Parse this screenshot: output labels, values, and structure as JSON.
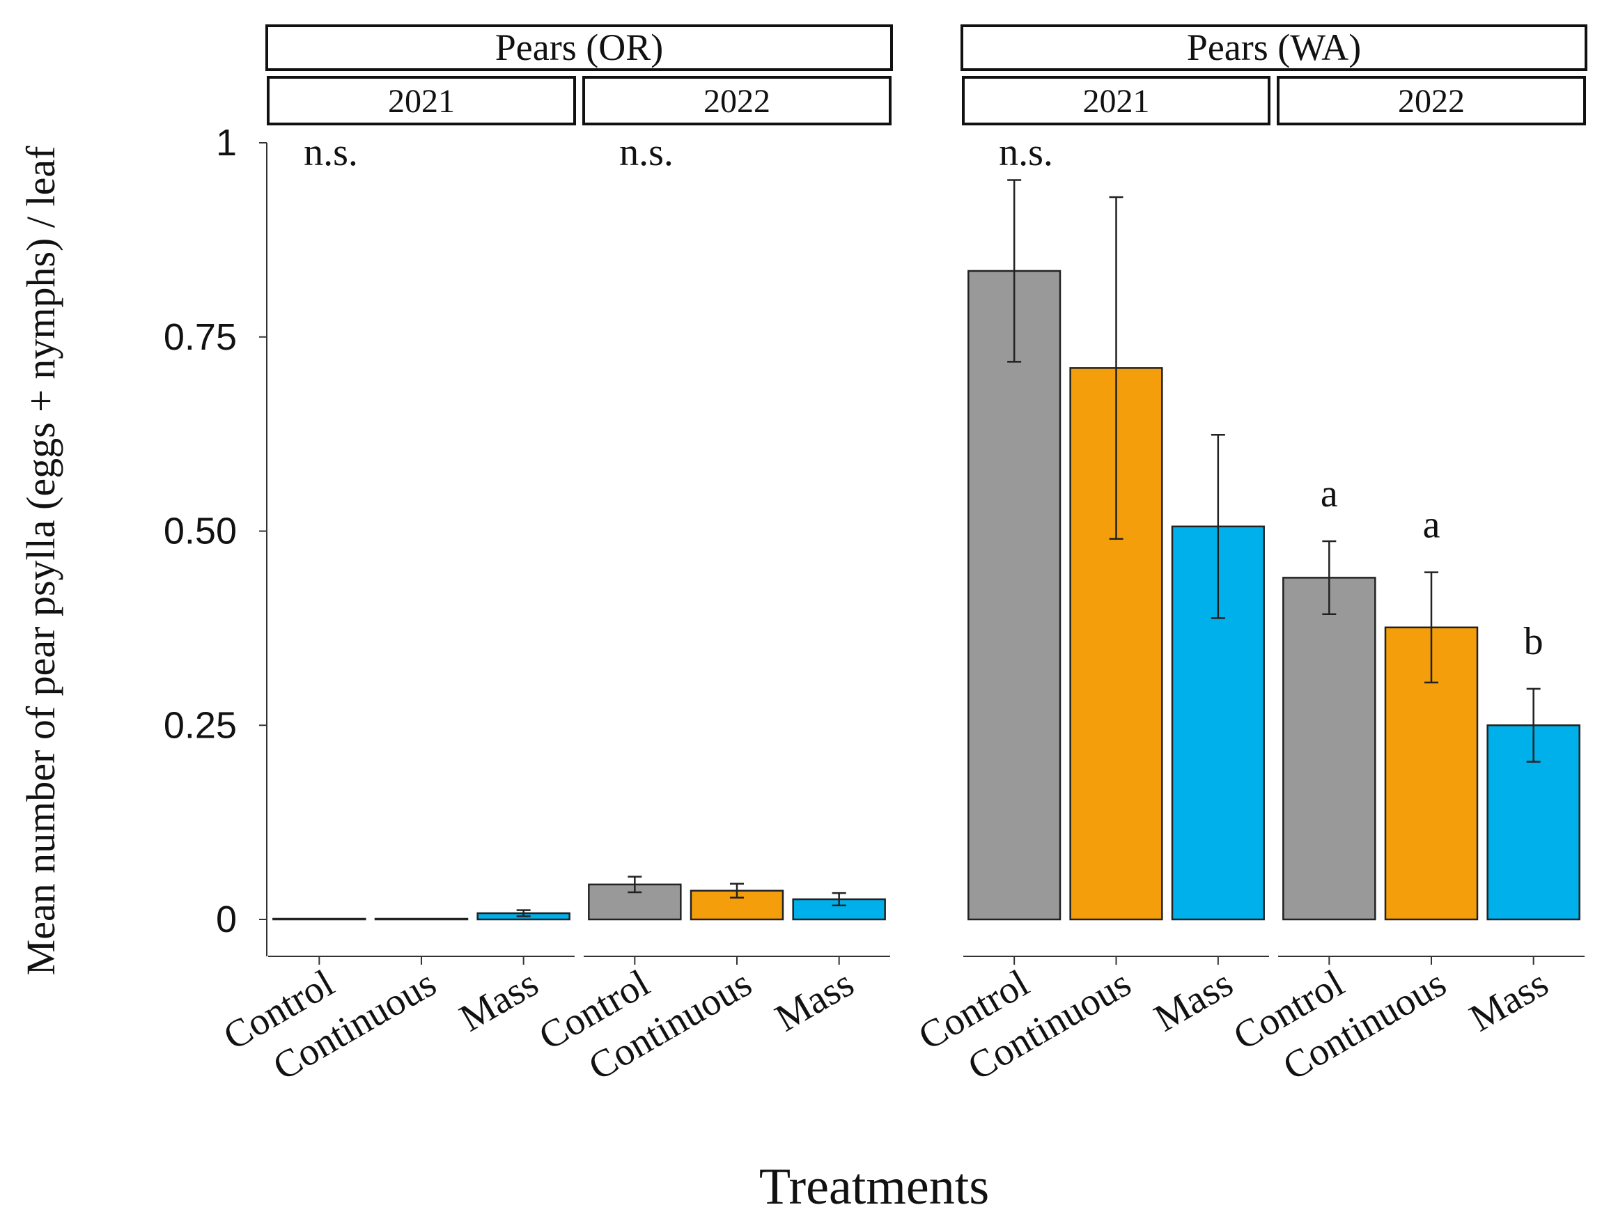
{
  "chart_data": {
    "type": "bar",
    "xlabel": "Treatments",
    "ylabel": "Mean number of pear psylla (eggs + nymphs) / leaf",
    "ylim": [
      0,
      1
    ],
    "y_ticks": [
      0,
      0.25,
      0.5,
      0.75,
      1
    ],
    "y_tick_labels": [
      "0",
      "0.25",
      "0.50",
      "0.75",
      "1"
    ],
    "categories": [
      "Control",
      "Continuous",
      "Mass"
    ],
    "colors": {
      "Control": "#999999",
      "Continuous": "#f59e0b",
      "Mass": "#00b0ea"
    },
    "groups": [
      {
        "name": "Pears (OR)",
        "panels": [
          {
            "year": "2021",
            "annotation": "n.s.",
            "bars": [
              {
                "category": "Control",
                "value": 0.0,
                "err_low": 0.0,
                "err_high": 0.0,
                "letter": ""
              },
              {
                "category": "Continuous",
                "value": 0.0,
                "err_low": 0.0,
                "err_high": 0.0,
                "letter": ""
              },
              {
                "category": "Mass",
                "value": 0.008,
                "err_low": 0.004,
                "err_high": 0.012,
                "letter": ""
              }
            ]
          },
          {
            "year": "2022",
            "annotation": "n.s.",
            "bars": [
              {
                "category": "Control",
                "value": 0.045,
                "err_low": 0.035,
                "err_high": 0.055,
                "letter": ""
              },
              {
                "category": "Continuous",
                "value": 0.037,
                "err_low": 0.028,
                "err_high": 0.046,
                "letter": ""
              },
              {
                "category": "Mass",
                "value": 0.026,
                "err_low": 0.018,
                "err_high": 0.034,
                "letter": ""
              }
            ]
          }
        ]
      },
      {
        "name": "Pears (WA)",
        "panels": [
          {
            "year": "2021",
            "annotation": "n.s.",
            "bars": [
              {
                "category": "Control",
                "value": 0.835,
                "err_low": 0.718,
                "err_high": 0.952,
                "letter": ""
              },
              {
                "category": "Continuous",
                "value": 0.71,
                "err_low": 0.49,
                "err_high": 0.93,
                "letter": ""
              },
              {
                "category": "Mass",
                "value": 0.506,
                "err_low": 0.388,
                "err_high": 0.624,
                "letter": ""
              }
            ]
          },
          {
            "year": "2022",
            "annotation": "",
            "bars": [
              {
                "category": "Control",
                "value": 0.44,
                "err_low": 0.393,
                "err_high": 0.487,
                "letter": "a"
              },
              {
                "category": "Continuous",
                "value": 0.376,
                "err_low": 0.305,
                "err_high": 0.447,
                "letter": "a"
              },
              {
                "category": "Mass",
                "value": 0.25,
                "err_low": 0.203,
                "err_high": 0.297,
                "letter": "b"
              }
            ]
          }
        ]
      }
    ]
  }
}
